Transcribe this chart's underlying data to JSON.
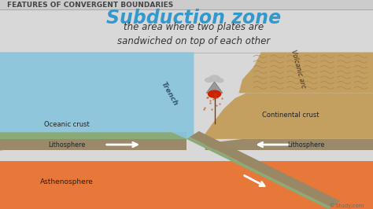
{
  "title": "FEATURES OF CONVERGENT BOUNDARIES",
  "title_fontsize": 6.5,
  "title_color": "#444444",
  "main_label": "Subduction zone",
  "main_label_fontsize": 17,
  "main_label_color": "#3399cc",
  "subtitle": "the area where two plates are\nsandwiched on top of each other",
  "subtitle_fontsize": 8.5,
  "subtitle_color": "#333333",
  "bg_color": "#d8d8d8",
  "header_bg": "#cccccc",
  "ocean_color": "#88c4dd",
  "oceanic_crust_color": "#8aaa78",
  "lithosphere_color": "#b0a07a",
  "asthenosphere_color": "#e8783a",
  "continental_crust_color": "#c4a060",
  "subducting_color": "#998866",
  "litho_dark": "#9a8a6a",
  "label_oceanic": "Oceanic crust",
  "label_continental": "Continental crust",
  "label_lithosphere_left": "Lithosphere",
  "label_lithosphere_right": "Lithosphere",
  "label_asthenosphere": "Asthenosphere",
  "label_trench": "Trench",
  "label_volcanic": "Volcanic arc",
  "watermark": "Study.com"
}
